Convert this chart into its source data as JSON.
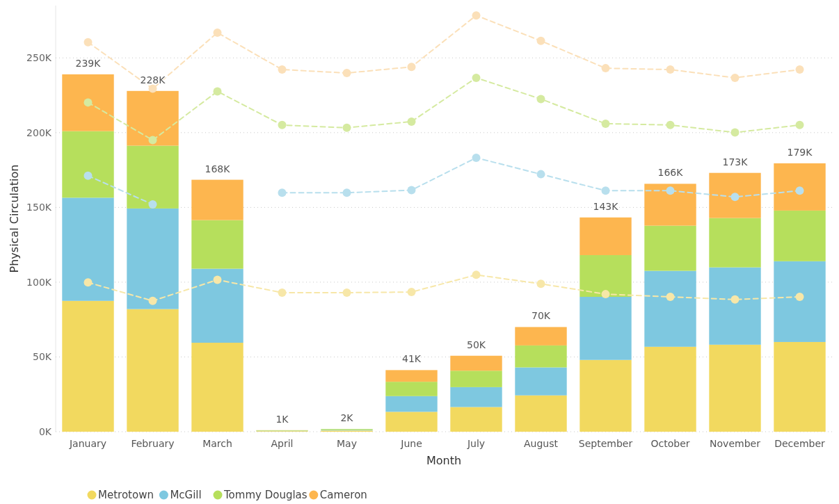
{
  "chart_data": {
    "type": "bar",
    "stacked": true,
    "xlabel": "Month",
    "ylabel": "Physical Circulation",
    "categories": [
      "January",
      "February",
      "March",
      "April",
      "May",
      "June",
      "July",
      "August",
      "September",
      "October",
      "November",
      "December"
    ],
    "series": [
      {
        "name": "Metrotown",
        "color": "#f2d95f",
        "values": [
          87.5,
          82,
          59.5,
          0.4,
          0.8,
          13.3,
          16.5,
          24.3,
          48,
          56.8,
          58.2,
          60
        ]
      },
      {
        "name": "McGill",
        "color": "#7ec8e0",
        "values": [
          69,
          67.3,
          49.5,
          0.2,
          0.4,
          10.5,
          13.3,
          18.7,
          42.2,
          50.8,
          51.7,
          54
        ]
      },
      {
        "name": "Tommy Douglas",
        "color": "#b6df5c",
        "values": [
          44.5,
          42,
          32.5,
          0.3,
          0.6,
          9.6,
          11,
          14.7,
          27.9,
          30.2,
          33,
          33.9
        ]
      },
      {
        "name": "Cameron",
        "color": "#fdb64f",
        "values": [
          38,
          36.6,
          27,
          0.1,
          null,
          7.8,
          10,
          12.3,
          25.2,
          28,
          30.2,
          31.6
        ]
      },
      {
        "type": "line",
        "color": "#f7e7a8",
        "marker": "circle",
        "line_style": "dashed",
        "values": [
          99.8,
          87.5,
          101.6,
          93,
          93,
          93.4,
          104.9,
          98.9,
          92,
          90.2,
          88.4,
          90.2
        ]
      },
      {
        "type": "line",
        "color": "#b8dfed",
        "marker": "circle",
        "line_style": "dashed",
        "values": [
          171.2,
          152,
          null,
          159.8,
          159.8,
          161.6,
          183.2,
          172.2,
          161.2,
          161.2,
          157,
          161.2
        ]
      },
      {
        "type": "line",
        "color": "#d5eaa0",
        "marker": "circle",
        "line_style": "dashed",
        "values": [
          220.2,
          195,
          227.6,
          205.1,
          203.3,
          207.4,
          236.7,
          222.5,
          206,
          205.1,
          200.1,
          205.1
        ]
      },
      {
        "type": "line",
        "color": "#fbe0b9",
        "marker": "circle",
        "line_style": "dashed",
        "values": [
          260.5,
          229.4,
          266.9,
          242.2,
          239.9,
          244,
          278.4,
          261.4,
          243.1,
          242.2,
          236.7,
          242.2
        ]
      }
    ],
    "totals": [
      "239K",
      "228K",
      "168K",
      "1K",
      "2K",
      "41K",
      "50K",
      "70K",
      "143K",
      "166K",
      "173K",
      "179K"
    ],
    "ylim": [
      0,
      285
    ],
    "yticks": [
      {
        "value": 0,
        "label": "0K"
      },
      {
        "value": 50,
        "label": "50K"
      },
      {
        "value": 100,
        "label": "100K"
      },
      {
        "value": 150,
        "label": "150K"
      },
      {
        "value": 200,
        "label": "200K"
      },
      {
        "value": 250,
        "label": "250K"
      }
    ],
    "grid": "y",
    "legend": "bottom left"
  }
}
